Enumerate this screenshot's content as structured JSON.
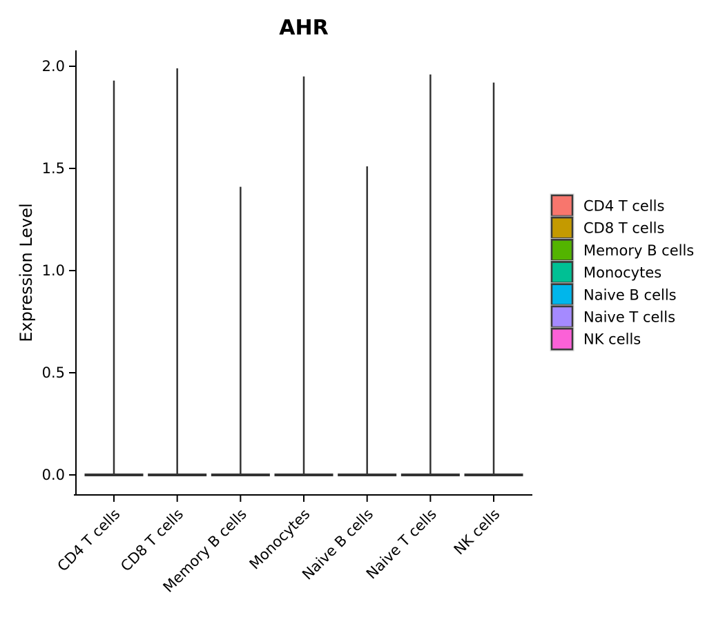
{
  "title": "AHR",
  "chart_data": {
    "type": "violin",
    "title": "AHR",
    "xlabel": "",
    "ylabel": "Expression Level",
    "categories": [
      "CD4 T cells",
      "CD8 T cells",
      "Memory B cells",
      "Monocytes",
      "Naive B cells",
      "Naive T cells",
      "NK cells"
    ],
    "y_ticks": [
      0.0,
      0.5,
      1.0,
      1.5,
      2.0
    ],
    "y_tick_labels": [
      "0.0",
      "0.5",
      "1.0",
      "1.5",
      "2.0"
    ],
    "ylim": [
      0,
      2.08
    ],
    "grid": false,
    "legend_position": "right",
    "violins": [
      {
        "category": "CD4 T cells",
        "color": "#F8766D",
        "min_value": 0.0,
        "max_value": 1.93,
        "dense_at": 0.0
      },
      {
        "category": "CD8 T cells",
        "color": "#C49A00",
        "min_value": 0.0,
        "max_value": 1.99,
        "dense_at": 0.0
      },
      {
        "category": "Memory B cells",
        "color": "#53B400",
        "min_value": 0.0,
        "max_value": 1.41,
        "dense_at": 0.0
      },
      {
        "category": "Monocytes",
        "color": "#00C094",
        "min_value": 0.0,
        "max_value": 1.95,
        "dense_at": 0.0
      },
      {
        "category": "Naive B cells",
        "color": "#00B6EB",
        "min_value": 0.0,
        "max_value": 1.51,
        "dense_at": 0.0
      },
      {
        "category": "Naive T cells",
        "color": "#A58AFF",
        "min_value": 0.0,
        "max_value": 1.96,
        "dense_at": 0.0
      },
      {
        "category": "NK cells",
        "color": "#FB61D7",
        "min_value": 0.0,
        "max_value": 1.92,
        "dense_at": 0.0
      }
    ],
    "series": [
      {
        "name": "max_expression",
        "values": [
          1.93,
          1.99,
          1.41,
          1.95,
          1.51,
          1.96,
          1.92
        ]
      }
    ],
    "shape_note": "Each violin is collapsed: widest at expression 0 with a thin spike rising to its max value"
  },
  "legend": {
    "position": "right",
    "entries": [
      {
        "label": "CD4 T cells",
        "color": "#F8766D"
      },
      {
        "label": "CD8 T cells",
        "color": "#C49A00"
      },
      {
        "label": "Memory B cells",
        "color": "#53B400"
      },
      {
        "label": "Monocytes",
        "color": "#00C094"
      },
      {
        "label": "Naive B cells",
        "color": "#00B6EB"
      },
      {
        "label": "Naive T cells",
        "color": "#A58AFF"
      },
      {
        "label": "NK cells",
        "color": "#FB61D7"
      }
    ]
  },
  "style_colors": {
    "axis": "#000000",
    "violin_outline": "#333333",
    "legend_swatch_border": "#3a3a3a",
    "background": "#ffffff"
  }
}
